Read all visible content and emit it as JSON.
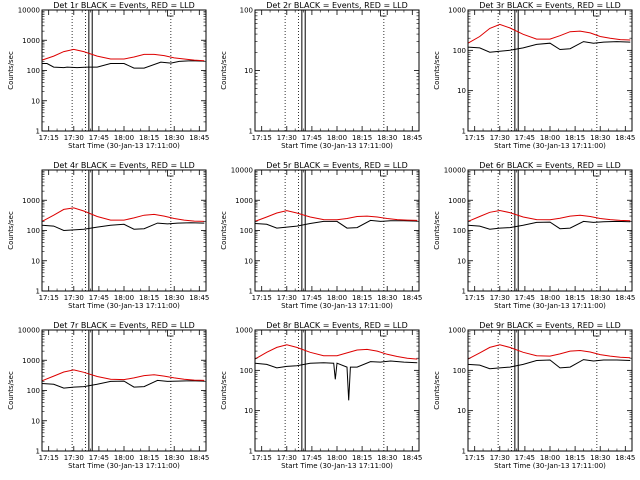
{
  "chart_data": [
    {
      "type": "line",
      "title": "Det 1r BLACK = Events, RED = LLD",
      "xlabel": "Start Time (30-Jan-13 17:11:00)",
      "ylabel": "Counts/sec",
      "log_y": true,
      "ylim": [
        1,
        10000
      ],
      "xlim": [
        "17:11",
        "18:49"
      ],
      "x_ticks": [
        "17:15",
        "17:30",
        "17:45",
        "18:00",
        "18:15",
        "18:30",
        "18:45"
      ],
      "y_ticks": [
        "1",
        "10",
        "100",
        "1000",
        "10000"
      ],
      "vlines_dotted": [
        "17:29",
        "17:37",
        "18:28"
      ],
      "vlines_solid": [
        "17:39",
        "17:41"
      ],
      "legend_text": "",
      "series": [
        {
          "color": "#000000",
          "x": [
            "17:11",
            "17:14",
            "17:18",
            "17:24",
            "17:26",
            "17:32",
            "17:38",
            "17:44",
            "17:52",
            "18:00",
            "18:06",
            "18:12",
            "18:22",
            "18:28",
            "18:33",
            "18:40",
            "18:48"
          ],
          "y": [
            170,
            170,
            130,
            125,
            130,
            125,
            130,
            130,
            170,
            170,
            120,
            120,
            190,
            175,
            200,
            210,
            205
          ]
        },
        {
          "color": "#dd0000",
          "x": [
            "17:11",
            "17:18",
            "17:24",
            "17:30",
            "17:36",
            "17:44",
            "17:52",
            "18:00",
            "18:06",
            "18:12",
            "18:18",
            "18:24",
            "18:30",
            "18:36",
            "18:42",
            "18:48"
          ],
          "y": [
            220,
            300,
            420,
            500,
            420,
            300,
            240,
            240,
            280,
            340,
            340,
            310,
            260,
            240,
            220,
            210
          ]
        }
      ]
    },
    {
      "type": "line",
      "title": "Det 2r BLACK = Events, RED = LLD",
      "xlabel": "Start Time (30-Jan-13 17:11:00)",
      "ylabel": "Counts/sec",
      "log_y": true,
      "ylim": [
        1,
        100
      ],
      "xlim": [
        "17:11",
        "18:49"
      ],
      "x_ticks": [
        "17:15",
        "17:30",
        "17:45",
        "18:00",
        "18:15",
        "18:30",
        "18:45"
      ],
      "y_ticks": [
        "1",
        "10",
        "100"
      ],
      "vlines_dotted": [
        "17:29",
        "17:37",
        "18:28"
      ],
      "vlines_solid": [
        "17:39",
        "17:41"
      ],
      "legend_text": "",
      "series": []
    },
    {
      "type": "line",
      "title": "Det 3r BLACK = Events, RED = LLD",
      "xlabel": "Start Time (30-Jan-13 17:11:00)",
      "ylabel": "Counts/sec",
      "log_y": true,
      "ylim": [
        1,
        1000
      ],
      "xlim": [
        "17:11",
        "18:49"
      ],
      "x_ticks": [
        "17:15",
        "17:30",
        "17:45",
        "18:00",
        "18:15",
        "18:30",
        "18:45"
      ],
      "y_ticks": [
        "1",
        "10",
        "100",
        "1000"
      ],
      "vlines_dotted": [
        "17:29",
        "17:37",
        "18:28"
      ],
      "vlines_solid": [
        "17:39",
        "17:41"
      ],
      "legend_text": "",
      "series": [
        {
          "color": "#000000",
          "x": [
            "17:11",
            "17:18",
            "17:24",
            "17:30",
            "17:36",
            "17:44",
            "17:52",
            "18:00",
            "18:06",
            "18:12",
            "18:20",
            "18:26",
            "18:32",
            "18:40",
            "18:48"
          ],
          "y": [
            120,
            115,
            90,
            95,
            100,
            115,
            140,
            150,
            105,
            110,
            165,
            150,
            160,
            165,
            160
          ]
        },
        {
          "color": "#dd0000",
          "x": [
            "17:11",
            "17:18",
            "17:24",
            "17:30",
            "17:36",
            "17:44",
            "17:52",
            "18:00",
            "18:06",
            "18:12",
            "18:18",
            "18:24",
            "18:30",
            "18:36",
            "18:42",
            "18:48"
          ],
          "y": [
            150,
            220,
            350,
            440,
            360,
            250,
            190,
            190,
            230,
            290,
            300,
            270,
            220,
            200,
            185,
            180
          ]
        }
      ]
    },
    {
      "type": "line",
      "title": "Det 4r BLACK = Events, RED = LLD",
      "xlabel": "Start Time (30-Jan-13 17:11:00)",
      "ylabel": "Counts/sec",
      "log_y": true,
      "ylim": [
        1,
        10000
      ],
      "xlim": [
        "17:11",
        "18:49"
      ],
      "x_ticks": [
        "17:15",
        "17:30",
        "17:45",
        "18:00",
        "18:15",
        "18:30",
        "18:45"
      ],
      "y_ticks": [
        "1",
        "10",
        "100",
        "1000"
      ],
      "vlines_dotted": [
        "17:29",
        "17:37",
        "18:28"
      ],
      "vlines_solid": [
        "17:39",
        "17:41"
      ],
      "legend_text": "",
      "series": [
        {
          "color": "#000000",
          "x": [
            "17:11",
            "17:18",
            "17:24",
            "17:30",
            "17:36",
            "17:44",
            "17:52",
            "18:00",
            "18:06",
            "18:12",
            "18:20",
            "18:26",
            "18:32",
            "18:40",
            "18:48"
          ],
          "y": [
            150,
            140,
            100,
            105,
            110,
            130,
            150,
            160,
            110,
            115,
            175,
            165,
            175,
            180,
            175
          ]
        },
        {
          "color": "#dd0000",
          "x": [
            "17:11",
            "17:18",
            "17:24",
            "17:30",
            "17:36",
            "17:44",
            "17:52",
            "18:00",
            "18:06",
            "18:12",
            "18:18",
            "18:24",
            "18:30",
            "18:36",
            "18:42",
            "18:48"
          ],
          "y": [
            200,
            320,
            500,
            560,
            440,
            290,
            220,
            220,
            260,
            320,
            340,
            300,
            250,
            220,
            205,
            200
          ]
        }
      ]
    },
    {
      "type": "line",
      "title": "Det 5r BLACK = Events, RED = LLD",
      "xlabel": "Start Time (30-Jan-13 17:11:00)",
      "ylabel": "Counts/sec",
      "log_y": true,
      "ylim": [
        1,
        10000
      ],
      "xlim": [
        "17:11",
        "18:49"
      ],
      "x_ticks": [
        "17:15",
        "17:30",
        "17:45",
        "18:00",
        "18:15",
        "18:30",
        "18:45"
      ],
      "y_ticks": [
        "1",
        "10",
        "100",
        "1000",
        "10000"
      ],
      "vlines_dotted": [
        "17:29",
        "17:37",
        "18:28"
      ],
      "vlines_solid": [
        "17:39",
        "17:41"
      ],
      "legend_text": "",
      "series": [
        {
          "color": "#000000",
          "x": [
            "17:11",
            "17:18",
            "17:24",
            "17:30",
            "17:36",
            "17:44",
            "17:52",
            "18:00",
            "18:06",
            "18:12",
            "18:20",
            "18:26",
            "18:32",
            "18:40",
            "18:48"
          ],
          "y": [
            170,
            160,
            120,
            130,
            140,
            170,
            200,
            200,
            120,
            125,
            215,
            200,
            210,
            210,
            205
          ]
        },
        {
          "color": "#dd0000",
          "x": [
            "17:11",
            "17:18",
            "17:24",
            "17:30",
            "17:36",
            "17:44",
            "17:52",
            "18:00",
            "18:06",
            "18:12",
            "18:18",
            "18:24",
            "18:30",
            "18:36",
            "18:42",
            "18:48"
          ],
          "y": [
            200,
            280,
            380,
            450,
            380,
            280,
            230,
            225,
            250,
            290,
            300,
            280,
            250,
            230,
            220,
            215
          ]
        }
      ]
    },
    {
      "type": "line",
      "title": "Det 6r BLACK = Events, RED = LLD",
      "xlabel": "Start Time (30-Jan-13 17:11:00)",
      "ylabel": "Counts/sec",
      "log_y": true,
      "ylim": [
        1,
        10000
      ],
      "xlim": [
        "17:11",
        "18:49"
      ],
      "x_ticks": [
        "17:15",
        "17:30",
        "17:45",
        "18:00",
        "18:15",
        "18:30",
        "18:45"
      ],
      "y_ticks": [
        "1",
        "10",
        "100",
        "1000",
        "10000"
      ],
      "vlines_dotted": [
        "17:29",
        "17:37",
        "18:28"
      ],
      "vlines_solid": [
        "17:39",
        "17:41"
      ],
      "legend_text": "",
      "series": [
        {
          "color": "#000000",
          "x": [
            "17:11",
            "17:18",
            "17:24",
            "17:30",
            "17:36",
            "17:44",
            "17:52",
            "18:00",
            "18:06",
            "18:12",
            "18:20",
            "18:26",
            "18:32",
            "18:40",
            "18:48"
          ],
          "y": [
            150,
            140,
            110,
            120,
            125,
            150,
            185,
            190,
            115,
            120,
            200,
            185,
            195,
            200,
            195
          ]
        },
        {
          "color": "#dd0000",
          "x": [
            "17:11",
            "17:18",
            "17:24",
            "17:30",
            "17:36",
            "17:44",
            "17:52",
            "18:00",
            "18:06",
            "18:12",
            "18:18",
            "18:24",
            "18:30",
            "18:36",
            "18:42",
            "18:48"
          ],
          "y": [
            200,
            290,
            400,
            460,
            390,
            280,
            230,
            225,
            255,
            300,
            320,
            290,
            250,
            230,
            215,
            210
          ]
        }
      ]
    },
    {
      "type": "line",
      "title": "Det 7r BLACK = Events, RED = LLD",
      "xlabel": "Start Time (30-Jan-13 17:11:00)",
      "ylabel": "Counts/sec",
      "log_y": true,
      "ylim": [
        1,
        10000
      ],
      "xlim": [
        "17:11",
        "18:49"
      ],
      "x_ticks": [
        "17:15",
        "17:30",
        "17:45",
        "18:00",
        "18:15",
        "18:30",
        "18:45"
      ],
      "y_ticks": [
        "1",
        "10",
        "100",
        "1000",
        "10000"
      ],
      "vlines_dotted": [
        "17:29",
        "17:37",
        "18:28"
      ],
      "vlines_solid": [
        "17:39",
        "17:41"
      ],
      "legend_text": "",
      "series": [
        {
          "color": "#000000",
          "x": [
            "17:11",
            "17:18",
            "17:24",
            "17:30",
            "17:36",
            "17:44",
            "17:52",
            "18:00",
            "18:06",
            "18:12",
            "18:20",
            "18:26",
            "18:32",
            "18:40",
            "18:48"
          ],
          "y": [
            170,
            160,
            120,
            130,
            135,
            160,
            200,
            205,
            130,
            135,
            215,
            200,
            205,
            210,
            205
          ]
        },
        {
          "color": "#dd0000",
          "x": [
            "17:11",
            "17:18",
            "17:24",
            "17:30",
            "17:36",
            "17:44",
            "17:52",
            "18:00",
            "18:06",
            "18:12",
            "18:18",
            "18:24",
            "18:30",
            "18:36",
            "18:42",
            "18:48"
          ],
          "y": [
            210,
            300,
            410,
            480,
            400,
            290,
            235,
            230,
            260,
            310,
            330,
            300,
            260,
            235,
            220,
            215
          ]
        }
      ]
    },
    {
      "type": "line",
      "title": "Det 8r BLACK = Events, RED = LLD",
      "xlabel": "Start Time (30-Jan-13 17:11:00)",
      "ylabel": "Counts/sec",
      "log_y": true,
      "ylim": [
        1,
        1000
      ],
      "xlim": [
        "17:11",
        "18:49"
      ],
      "x_ticks": [
        "17:15",
        "17:30",
        "17:45",
        "18:00",
        "18:15",
        "18:30",
        "18:45"
      ],
      "y_ticks": [
        "1",
        "10",
        "100",
        "1000"
      ],
      "vlines_dotted": [
        "17:29",
        "17:37",
        "18:28"
      ],
      "vlines_solid": [
        "17:39",
        "17:41"
      ],
      "legend_text": "",
      "series": [
        {
          "color": "#000000",
          "x": [
            "17:11",
            "17:18",
            "17:24",
            "17:30",
            "17:36",
            "17:44",
            "17:52",
            "17:58",
            "17:59",
            "18:00",
            "18:06",
            "18:07",
            "18:08",
            "18:12",
            "18:20",
            "18:26",
            "18:32",
            "18:40",
            "18:48"
          ],
          "y": [
            150,
            140,
            115,
            125,
            130,
            150,
            155,
            150,
            60,
            150,
            120,
            18,
            120,
            120,
            165,
            160,
            170,
            160,
            155
          ]
        },
        {
          "color": "#dd0000",
          "x": [
            "17:11",
            "17:18",
            "17:24",
            "17:30",
            "17:36",
            "17:44",
            "17:52",
            "18:00",
            "18:06",
            "18:12",
            "18:18",
            "18:24",
            "18:30",
            "18:36",
            "18:42",
            "18:48"
          ],
          "y": [
            190,
            280,
            370,
            430,
            370,
            280,
            230,
            230,
            270,
            320,
            330,
            300,
            250,
            220,
            200,
            190
          ]
        }
      ]
    },
    {
      "type": "line",
      "title": "Det 9r BLACK = Events, RED = LLD",
      "xlabel": "Start Time (30-Jan-13 17:11:00)",
      "ylabel": "Counts/sec",
      "log_y": true,
      "ylim": [
        1,
        1000
      ],
      "xlim": [
        "17:11",
        "18:49"
      ],
      "x_ticks": [
        "17:15",
        "17:30",
        "17:45",
        "18:00",
        "18:15",
        "18:30",
        "18:45"
      ],
      "y_ticks": [
        "1",
        "10",
        "100",
        "1000"
      ],
      "vlines_dotted": [
        "17:29",
        "17:37",
        "18:28"
      ],
      "vlines_solid": [
        "17:39",
        "17:41"
      ],
      "legend_text": "",
      "series": [
        {
          "color": "#000000",
          "x": [
            "17:11",
            "17:18",
            "17:24",
            "17:30",
            "17:36",
            "17:44",
            "17:52",
            "18:00",
            "18:06",
            "18:12",
            "18:20",
            "18:26",
            "18:32",
            "18:40",
            "18:48"
          ],
          "y": [
            140,
            135,
            110,
            115,
            120,
            140,
            175,
            180,
            115,
            120,
            185,
            170,
            180,
            180,
            175
          ]
        },
        {
          "color": "#dd0000",
          "x": [
            "17:11",
            "17:18",
            "17:24",
            "17:30",
            "17:36",
            "17:44",
            "17:52",
            "18:00",
            "18:06",
            "18:12",
            "18:18",
            "18:24",
            "18:30",
            "18:36",
            "18:42",
            "18:48"
          ],
          "y": [
            190,
            270,
            370,
            430,
            370,
            280,
            230,
            225,
            255,
            300,
            310,
            285,
            245,
            225,
            210,
            205
          ]
        }
      ]
    }
  ]
}
